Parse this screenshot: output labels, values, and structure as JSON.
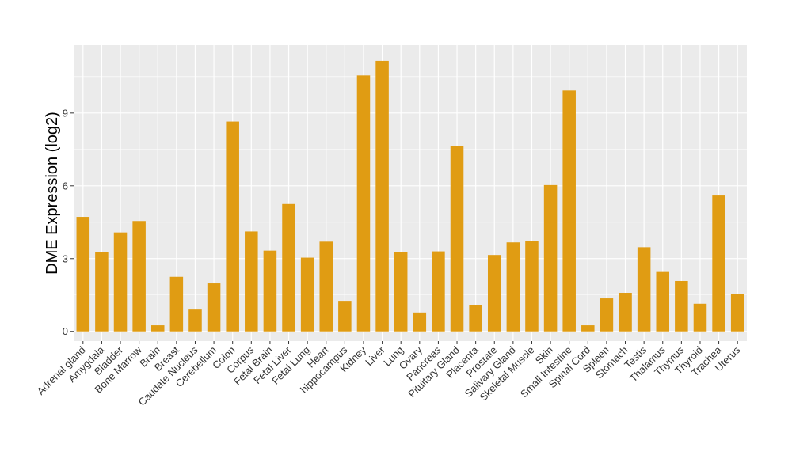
{
  "chart_data": {
    "type": "bar",
    "title": "",
    "xlabel": "",
    "ylabel": "DME Expression (log2)",
    "ylim": [
      -0.4,
      11.8
    ],
    "yticks": [
      0,
      3,
      6,
      9
    ],
    "grid": true,
    "legend": "none",
    "bar_color": "#E09C13",
    "panel_color": "#EBEBEB",
    "grid_color": "#FFFFFF",
    "categories": [
      "Adrenal gland",
      "Amygdala",
      "Bladder",
      "Bone Marrow",
      "Brain",
      "Breast",
      "Caudate Nucleus",
      "Cerebellum",
      "Colon",
      "Corpus",
      "Fetal Brain",
      "Fetal Liver",
      "Fetal Lung",
      "Heart",
      "hippocampus",
      "Kidney",
      "Liver",
      "Lung",
      "Ovary",
      "Pancreas",
      "Pituitary Gland",
      "Placenta",
      "Prostate",
      "Salivary Gland",
      "Skeletal Muscle",
      "Skin",
      "Small Intestine",
      "Spinal Cord",
      "Spleen",
      "Stomach",
      "Testis",
      "Thalamus",
      "Thymus",
      "Thyroid",
      "Trachea",
      "Uterus"
    ],
    "values": [
      4.72,
      3.27,
      4.08,
      4.55,
      0.25,
      2.25,
      0.9,
      1.98,
      8.65,
      4.12,
      3.33,
      5.25,
      3.04,
      3.7,
      1.26,
      10.55,
      11.15,
      3.27,
      0.78,
      3.3,
      7.65,
      1.07,
      3.15,
      3.67,
      3.73,
      6.03,
      9.93,
      0.25,
      1.36,
      1.59,
      3.47,
      2.45,
      2.08,
      1.14,
      5.6,
      1.53
    ]
  }
}
